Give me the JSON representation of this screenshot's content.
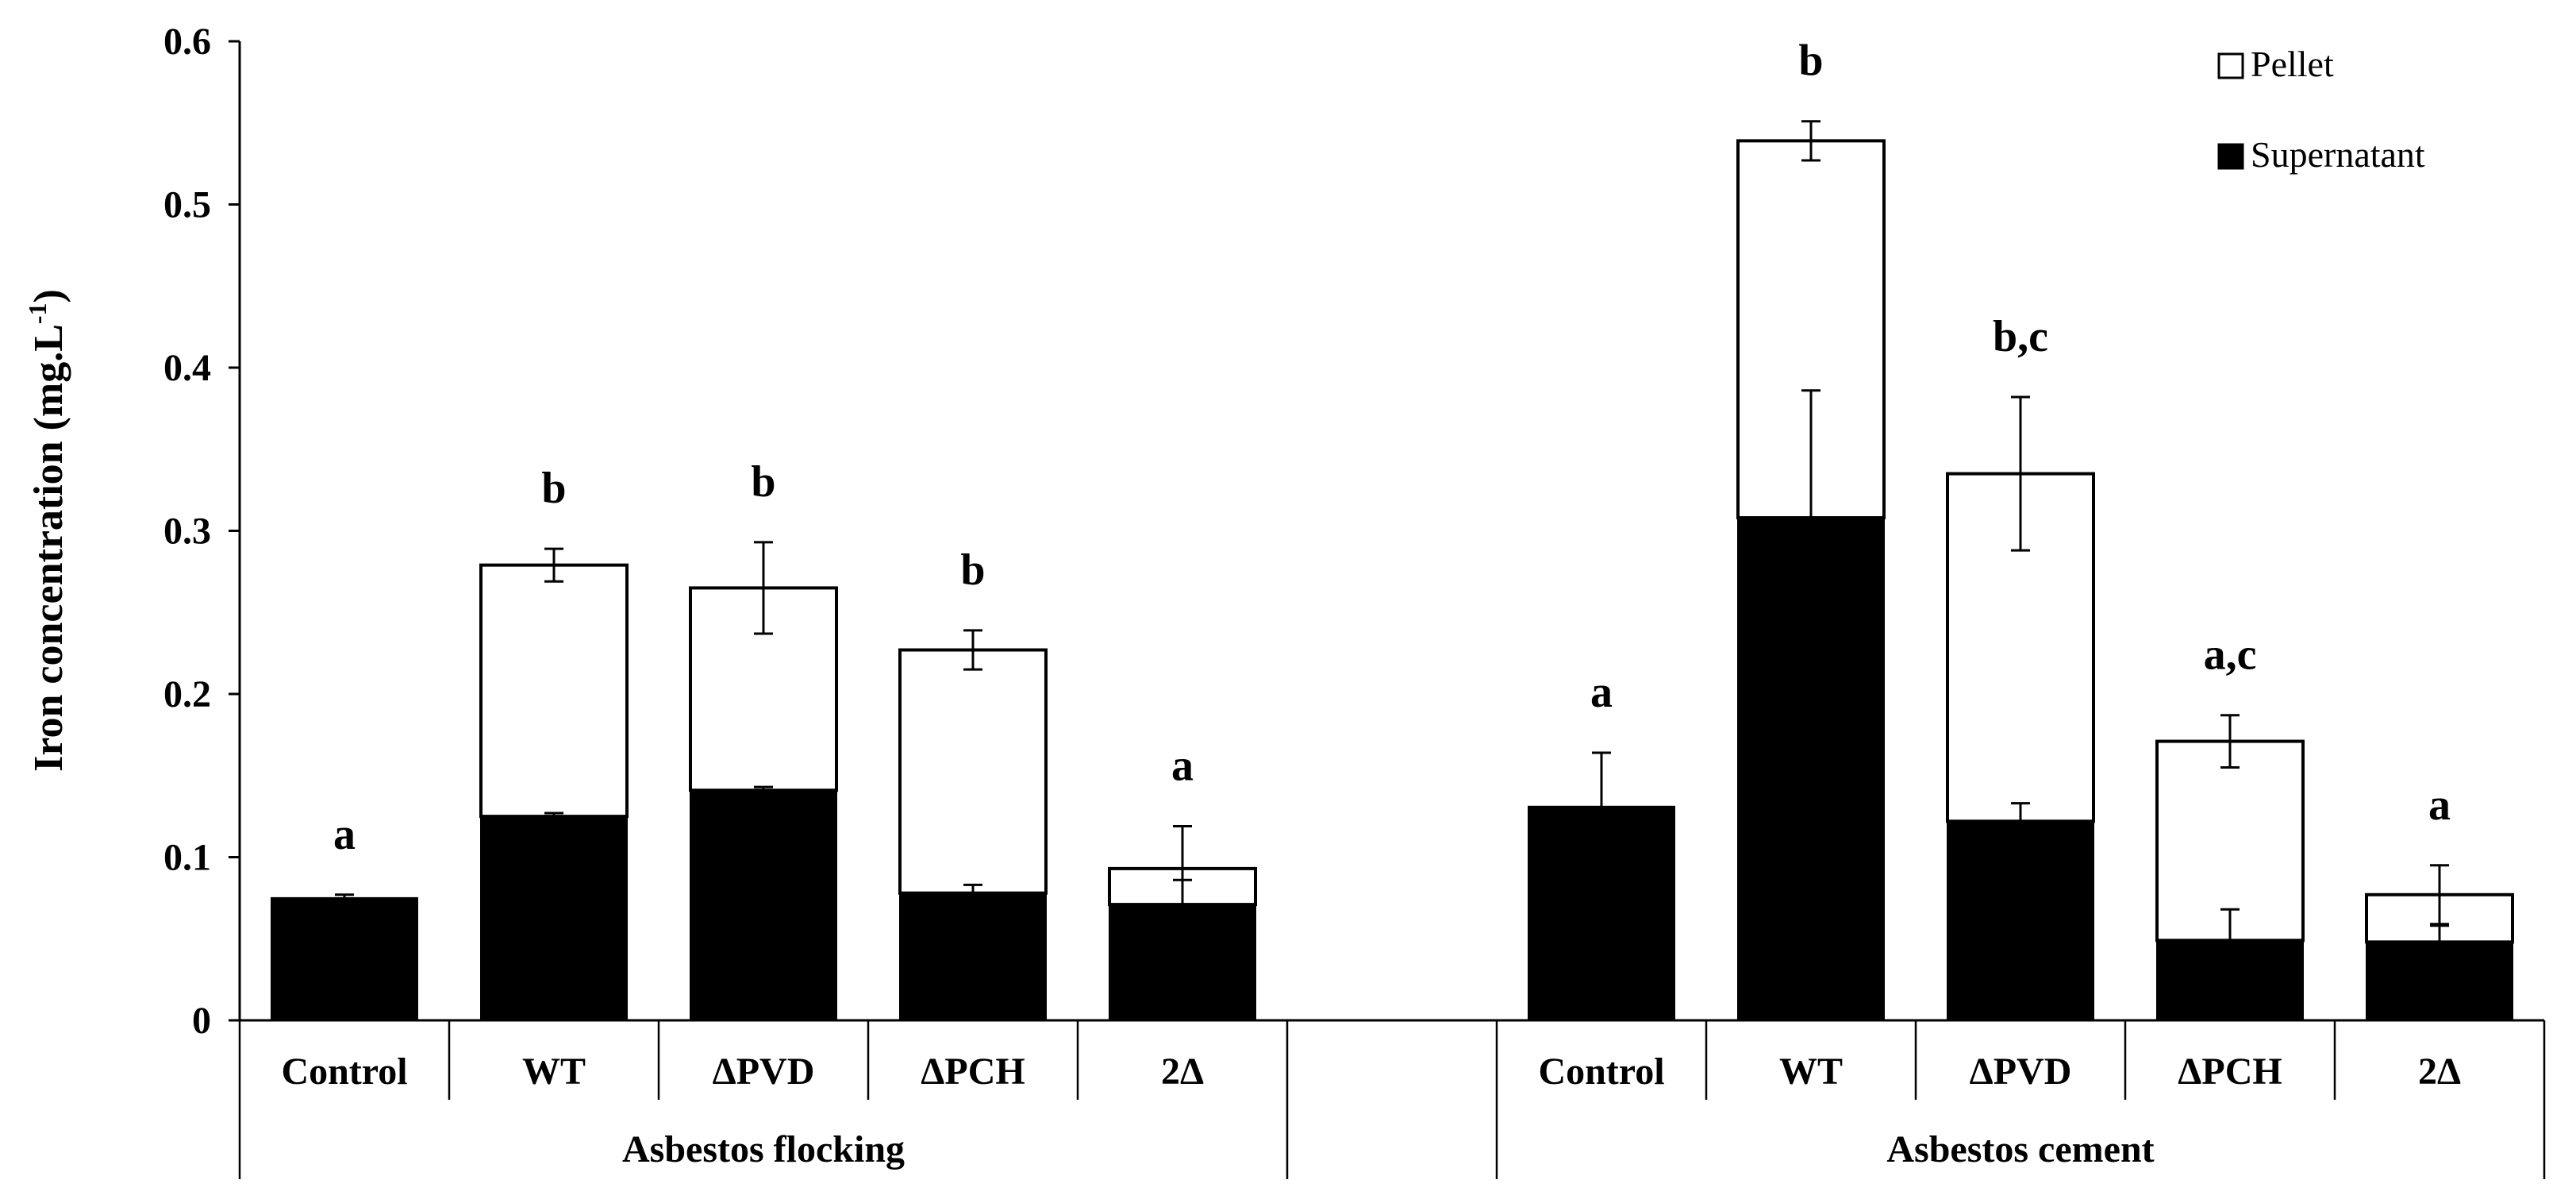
{
  "chart_data": {
    "type": "bar",
    "stacked": true,
    "ylabel": "Iron concentration (mg.L",
    "ylabel_sup": "-1",
    "ylabel_close": ")",
    "ylim": [
      0,
      0.6
    ],
    "yticks": [
      "0",
      "0.1",
      "0.2",
      "0.3",
      "0.4",
      "0.5",
      "0.6"
    ],
    "legend": [
      {
        "name": "Pellet",
        "fill": "#ffffff"
      },
      {
        "name": "Supernatant",
        "fill": "#000000"
      }
    ],
    "groups": [
      {
        "label": "Asbestos flocking",
        "bars": [
          {
            "category": "Control",
            "supernatant": 0.075,
            "supernatant_err": 0.002,
            "total": 0.075,
            "total_err": 0.002,
            "letter": "a"
          },
          {
            "category": "WT",
            "supernatant": 0.125,
            "supernatant_err": 0.002,
            "total": 0.279,
            "total_err": 0.01,
            "letter": "b"
          },
          {
            "category": "ΔPVD",
            "supernatant": 0.141,
            "supernatant_err": 0.002,
            "total": 0.265,
            "total_err": 0.028,
            "letter": "b"
          },
          {
            "category": "ΔPCH",
            "supernatant": 0.078,
            "supernatant_err": 0.005,
            "total": 0.227,
            "total_err": 0.012,
            "letter": "b"
          },
          {
            "category": "2Δ",
            "supernatant": 0.071,
            "supernatant_err": 0.015,
            "total": 0.093,
            "total_err": 0.026,
            "letter": "a"
          }
        ]
      },
      {
        "label": "Asbestos cement",
        "bars": [
          {
            "category": "Control",
            "supernatant": 0.131,
            "supernatant_err": 0.033,
            "total": 0.131,
            "total_err": 0.033,
            "letter": "a"
          },
          {
            "category": "WT",
            "supernatant": 0.308,
            "supernatant_err": 0.078,
            "total": 0.539,
            "total_err": 0.012,
            "letter": "b"
          },
          {
            "category": "ΔPVD",
            "supernatant": 0.122,
            "supernatant_err": 0.011,
            "total": 0.335,
            "total_err": 0.047,
            "letter": "b,c"
          },
          {
            "category": "ΔPCH",
            "supernatant": 0.049,
            "supernatant_err": 0.019,
            "total": 0.171,
            "total_err": 0.016,
            "letter": "a,c"
          },
          {
            "category": "2Δ",
            "supernatant": 0.048,
            "supernatant_err": 0.01,
            "total": 0.077,
            "total_err": 0.018,
            "letter": "a"
          }
        ]
      }
    ]
  }
}
